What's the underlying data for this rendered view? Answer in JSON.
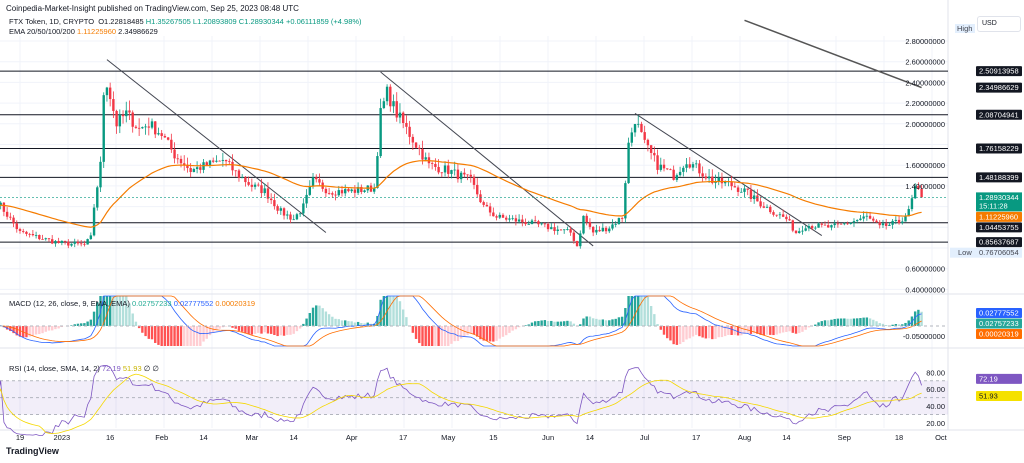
{
  "publisher": "Coinpedia-Market-Insight published on TradingView.com, Sep 25, 2023 08:48 UTC",
  "legend": {
    "symbol": "FTX Token, 1D, CRYPTO",
    "o": "O1.22818485",
    "h": "H1.35267505",
    "l": "L1.20893809",
    "c": "C1.28930344",
    "chg": "+0.06111859 (+4.98%)",
    "ema_label": "EMA 20/50/100/200",
    "ema1": "1.11225960",
    "ema2": "2.34986629",
    "macd_label": "MACD (12, 26, close, 9, EMA, EMA)",
    "macd1": "0.02757233",
    "macd2": "0.02777552",
    "macd3": "0.00020319",
    "rsi_label": "RSI (14, close, SMA, 14, 2)",
    "rsi1": "72.19",
    "rsi2": "51.93",
    "rsi3": "∅ ∅"
  },
  "currency": "USD",
  "logo": "TradingView",
  "colors": {
    "up": "#089981",
    "down": "#f23645",
    "ema50": "#f57c00",
    "ema200": "#555555",
    "macd": "#2962ff",
    "signal": "#ff6d00",
    "rsi": "#7e57c2",
    "rsi_ma": "#f5d800"
  },
  "chart_data": {
    "type": "candlestick",
    "symbol": "FTX Token",
    "interval": "1D",
    "price_axis": {
      "ticks": [
        "2.80000000",
        "2.60000000",
        "2.40000000",
        "2.20000000",
        "2.00000000",
        "1.60000000",
        "1.40000000",
        "0.60000000",
        "0.40000000"
      ],
      "range": [
        0.38,
        2.95
      ]
    },
    "time_axis": [
      [
        "2022-12-19",
        "19"
      ],
      [
        "2023-01-01",
        "2023"
      ],
      [
        "2023-01-16",
        "16"
      ],
      [
        "2023-02-01",
        "Feb"
      ],
      [
        "2023-02-14",
        "14"
      ],
      [
        "2023-03-01",
        "Mar"
      ],
      [
        "2023-03-14",
        "14"
      ],
      [
        "2023-04-01",
        "Apr"
      ],
      [
        "2023-04-17",
        "17"
      ],
      [
        "2023-05-01",
        "May"
      ],
      [
        "2023-05-15",
        "15"
      ],
      [
        "2023-06-01",
        "Jun"
      ],
      [
        "2023-06-14",
        "14"
      ],
      [
        "2023-07-01",
        "Jul"
      ],
      [
        "2023-07-17",
        "17"
      ],
      [
        "2023-08-01",
        "Aug"
      ],
      [
        "2023-08-14",
        "14"
      ],
      [
        "2023-09-01",
        "Sep"
      ],
      [
        "2023-09-18",
        "18"
      ],
      [
        "2023-10-01",
        "Oct"
      ]
    ],
    "close_path": [
      [
        "2022-12-12",
        1.25
      ],
      [
        "2022-12-19",
        0.95
      ],
      [
        "2022-12-31",
        0.85
      ],
      [
        "2023-01-08",
        0.83
      ],
      [
        "2023-01-10",
        0.9
      ],
      [
        "2023-01-11",
        1.2
      ],
      [
        "2023-01-13",
        1.6
      ],
      [
        "2023-01-14",
        2.3
      ],
      [
        "2023-01-15",
        2.4
      ],
      [
        "2023-01-18",
        2.0
      ],
      [
        "2023-01-21",
        2.1
      ],
      [
        "2023-01-25",
        1.95
      ],
      [
        "2023-01-28",
        2.0
      ],
      [
        "2023-02-01",
        1.9
      ],
      [
        "2023-02-05",
        1.7
      ],
      [
        "2023-02-10",
        1.55
      ],
      [
        "2023-02-15",
        1.6
      ],
      [
        "2023-02-20",
        1.65
      ],
      [
        "2023-02-25",
        1.5
      ],
      [
        "2023-03-01",
        1.4
      ],
      [
        "2023-03-05",
        1.35
      ],
      [
        "2023-03-10",
        1.15
      ],
      [
        "2023-03-14",
        1.08
      ],
      [
        "2023-03-17",
        1.2
      ],
      [
        "2023-03-20",
        1.45
      ],
      [
        "2023-03-25",
        1.35
      ],
      [
        "2023-04-01",
        1.35
      ],
      [
        "2023-04-08",
        1.38
      ],
      [
        "2023-04-10",
        2.1
      ],
      [
        "2023-04-12",
        2.3
      ],
      [
        "2023-04-15",
        2.1
      ],
      [
        "2023-04-20",
        1.85
      ],
      [
        "2023-04-25",
        1.6
      ],
      [
        "2023-05-01",
        1.55
      ],
      [
        "2023-05-08",
        1.45
      ],
      [
        "2023-05-12",
        1.2
      ],
      [
        "2023-05-16",
        1.1
      ],
      [
        "2023-05-25",
        1.05
      ],
      [
        "2023-06-01",
        1.0
      ],
      [
        "2023-06-08",
        0.95
      ],
      [
        "2023-06-10",
        0.82
      ],
      [
        "2023-06-12",
        1.1
      ],
      [
        "2023-06-15",
        0.95
      ],
      [
        "2023-06-20",
        1.0
      ],
      [
        "2023-06-24",
        1.1
      ],
      [
        "2023-06-26",
        1.8
      ],
      [
        "2023-06-28",
        2.05
      ],
      [
        "2023-07-01",
        1.8
      ],
      [
        "2023-07-05",
        1.6
      ],
      [
        "2023-07-10",
        1.5
      ],
      [
        "2023-07-14",
        1.65
      ],
      [
        "2023-07-18",
        1.55
      ],
      [
        "2023-07-22",
        1.45
      ],
      [
        "2023-07-27",
        1.42
      ],
      [
        "2023-08-01",
        1.35
      ],
      [
        "2023-08-05",
        1.25
      ],
      [
        "2023-08-10",
        1.15
      ],
      [
        "2023-08-14",
        1.08
      ],
      [
        "2023-08-17",
        0.95
      ],
      [
        "2023-08-20",
        1.02
      ],
      [
        "2023-08-28",
        1.0
      ],
      [
        "2023-09-03",
        1.05
      ],
      [
        "2023-09-08",
        1.1
      ],
      [
        "2023-09-12",
        1.0
      ],
      [
        "2023-09-18",
        1.05
      ],
      [
        "2023-09-21",
        1.15
      ],
      [
        "2023-09-23",
        1.38
      ],
      [
        "2023-09-25",
        1.28930344
      ]
    ],
    "horizontal_levels": [
      "2.50913958",
      "2.08704941",
      "1.76158229",
      "1.48188399",
      "1.04453755",
      "0.85637687"
    ],
    "trend_lines": [
      [
        [
          "2023-01-15",
          2.62
        ],
        [
          "2023-03-24",
          0.95
        ]
      ],
      [
        [
          "2023-04-10",
          2.5
        ],
        [
          "2023-06-15",
          0.82
        ]
      ],
      [
        [
          "2023-06-28",
          2.1
        ],
        [
          "2023-08-25",
          0.92
        ]
      ]
    ],
    "ema200_path": [
      [
        "2023-08-01",
        3.0
      ],
      [
        "2023-09-25",
        2.34986629
      ]
    ],
    "axis_labels": {
      "high": "High",
      "low": "Low",
      "low_value": "0.76706054",
      "last": "1.28930344",
      "countdown": "15:11:28",
      "ema50": "1.11225960",
      "ema200": "2.34986629"
    },
    "macd_axis": {
      "ticks": [
        "-0.05000000"
      ],
      "labels": [
        "0.02777552",
        "0.02757233",
        "0.00020319"
      ]
    },
    "rsi_axis": {
      "ticks": [
        "80.00",
        "60.00",
        "40.00",
        "20.00"
      ],
      "labels": [
        "72.19",
        "51.93"
      ],
      "band": [
        30,
        70
      ]
    }
  }
}
